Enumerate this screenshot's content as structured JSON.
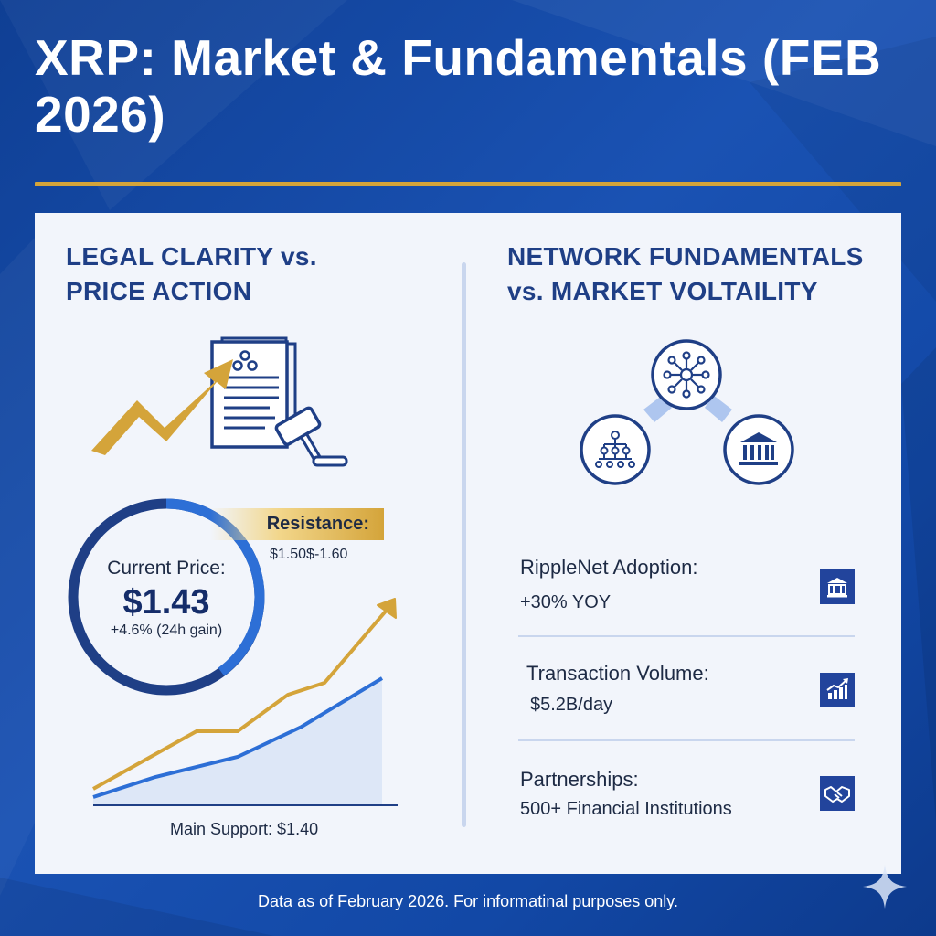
{
  "header": {
    "title": "XRP: Market & Fundamentals (FEB 2026)"
  },
  "left_section": {
    "title": "LEGAL CLARITY vs. PRICE ACTION",
    "price": {
      "label": "Current Price:",
      "value": "$1.43",
      "change": "+4.6% (24h gain)"
    },
    "resistance": {
      "label": "Resistance:",
      "range": "$1.50$-1.60"
    },
    "support": "Main Support: $1.40"
  },
  "right_section": {
    "title": "NETWORK FUNDAMENTALS vs. MARKET VOLTAILITY",
    "metrics": [
      {
        "label": "RippleNet Adoption:",
        "value": "+30% YOY",
        "icon": "bank-icon"
      },
      {
        "label": "Transaction Volume:",
        "value": "$5.2B/day",
        "icon": "bar-chart-icon"
      },
      {
        "label": "Partnerships:",
        "value": "500+ Financial Institutions",
        "icon": "handshake-icon"
      }
    ]
  },
  "footer": "Data as of February 2026. For informatinal purposes only.",
  "colors": {
    "navy": "#1f3f86",
    "gold": "#d4a43a",
    "blue": "#2d6fd6",
    "panel": "#f2f5fb"
  }
}
